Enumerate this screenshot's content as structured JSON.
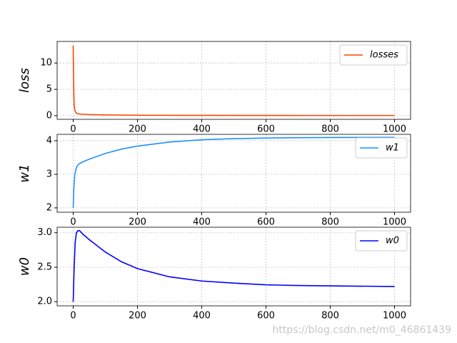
{
  "chart_data": [
    {
      "type": "line",
      "ylabel": "loss",
      "xlim": [
        -50,
        1050
      ],
      "ylim": [
        -0.7,
        14.1
      ],
      "xticks": [
        0,
        200,
        400,
        600,
        800,
        1000
      ],
      "yticks": [
        0,
        5,
        10
      ],
      "grid": true,
      "legend": "upper right",
      "x": [
        0,
        1,
        2,
        3,
        5,
        8,
        12,
        20,
        50,
        100,
        200,
        400,
        600,
        800,
        1000
      ],
      "series": [
        {
          "name": "losses",
          "color": "#ff4500",
          "values": [
            13.3,
            8,
            4,
            2,
            1,
            0.6,
            0.4,
            0.3,
            0.2,
            0.15,
            0.08,
            0.05,
            0.04,
            0.03,
            0.03
          ]
        }
      ]
    },
    {
      "type": "line",
      "ylabel": "w1",
      "xlim": [
        -50,
        1050
      ],
      "ylim": [
        1.87,
        4.19
      ],
      "xticks": [
        0,
        200,
        400,
        600,
        800,
        1000
      ],
      "yticks": [
        2,
        3,
        4
      ],
      "grid": true,
      "legend": "upper right",
      "x": [
        0,
        2,
        5,
        10,
        15,
        20,
        30,
        50,
        100,
        150,
        200,
        300,
        400,
        500,
        600,
        700,
        800,
        1000
      ],
      "series": [
        {
          "name": "w1",
          "color": "#1e90ff",
          "values": [
            2.0,
            2.6,
            3.0,
            3.2,
            3.28,
            3.32,
            3.37,
            3.45,
            3.62,
            3.75,
            3.84,
            3.96,
            4.03,
            4.06,
            4.08,
            4.09,
            4.095,
            4.1
          ]
        }
      ]
    },
    {
      "type": "line",
      "ylabel": "w0",
      "xlim": [
        -50,
        1050
      ],
      "ylim": [
        1.94,
        3.08
      ],
      "xticks": [
        0,
        200,
        400,
        600,
        800,
        1000
      ],
      "yticks": [
        {
          "value": 2,
          "label": "2.0"
        },
        {
          "value": 2.5,
          "label": "2.5"
        },
        {
          "value": 3,
          "label": "3.0"
        }
      ],
      "grid": true,
      "legend": "upper right",
      "x": [
        0,
        3,
        6,
        10,
        15,
        20,
        30,
        50,
        100,
        150,
        200,
        300,
        400,
        500,
        600,
        700,
        800,
        1000
      ],
      "series": [
        {
          "name": "w0",
          "color": "#0000ff",
          "values": [
            2.0,
            2.5,
            2.85,
            3.0,
            3.03,
            3.03,
            2.98,
            2.9,
            2.72,
            2.58,
            2.48,
            2.36,
            2.3,
            2.27,
            2.245,
            2.235,
            2.23,
            2.22
          ]
        }
      ]
    }
  ],
  "watermark": "https://blog.csdn.net/m0_46861439"
}
